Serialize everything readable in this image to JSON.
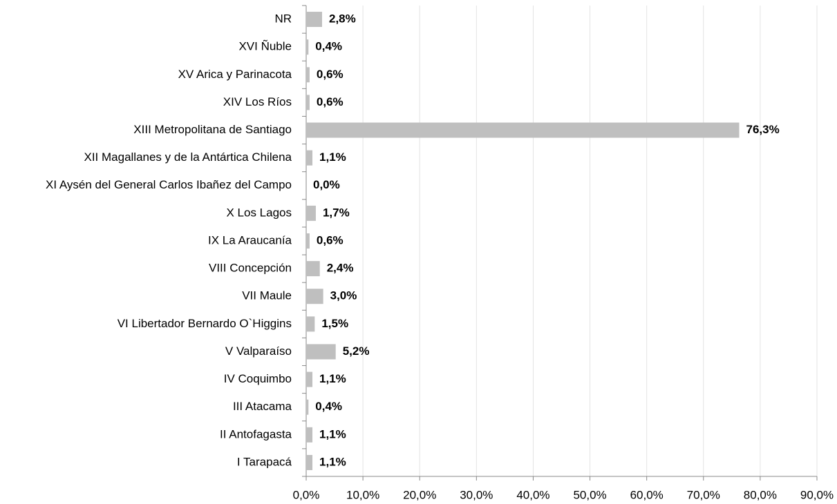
{
  "chart_data": {
    "type": "barh",
    "categories": [
      "NR",
      "XVI Ñuble",
      "XV Arica y Parinacota",
      "XIV Los Ríos",
      "XIII Metropolitana de Santiago",
      "XII Magallanes y de la Antártica Chilena",
      "XI Aysén del General Carlos Ibañez del Campo",
      "X Los Lagos",
      "IX La Araucanía",
      "VIII Concepción",
      "VII Maule",
      "VI Libertador Bernardo O`Higgins",
      "V Valparaíso",
      "IV Coquimbo",
      "III Atacama",
      "II Antofagasta",
      "I Tarapacá"
    ],
    "values": [
      2.8,
      0.4,
      0.6,
      0.6,
      76.3,
      1.1,
      0.0,
      1.7,
      0.6,
      2.4,
      3.0,
      1.5,
      5.2,
      1.1,
      0.4,
      1.1,
      1.1
    ],
    "value_labels": [
      "2,8%",
      "0,4%",
      "0,6%",
      "0,6%",
      "76,3%",
      "1,1%",
      "0,0%",
      "1,7%",
      "0,6%",
      "2,4%",
      "3,0%",
      "1,5%",
      "5,2%",
      "1,1%",
      "0,4%",
      "1,1%",
      "1,1%"
    ],
    "color": "#bfbfbf",
    "xlim": [
      0,
      90
    ],
    "xticks": [
      {
        "value": 0,
        "label": "0,0%"
      },
      {
        "value": 10,
        "label": "10,0%"
      },
      {
        "value": 20,
        "label": "20,0%"
      },
      {
        "value": 30,
        "label": "30,0%"
      },
      {
        "value": 40,
        "label": "40,0%"
      },
      {
        "value": 50,
        "label": "50,0%"
      },
      {
        "value": 60,
        "label": "60,0%"
      },
      {
        "value": 70,
        "label": "70,0%"
      },
      {
        "value": 80,
        "label": "80,0%"
      },
      {
        "value": 90,
        "label": "90,0%"
      }
    ],
    "grid": true
  }
}
